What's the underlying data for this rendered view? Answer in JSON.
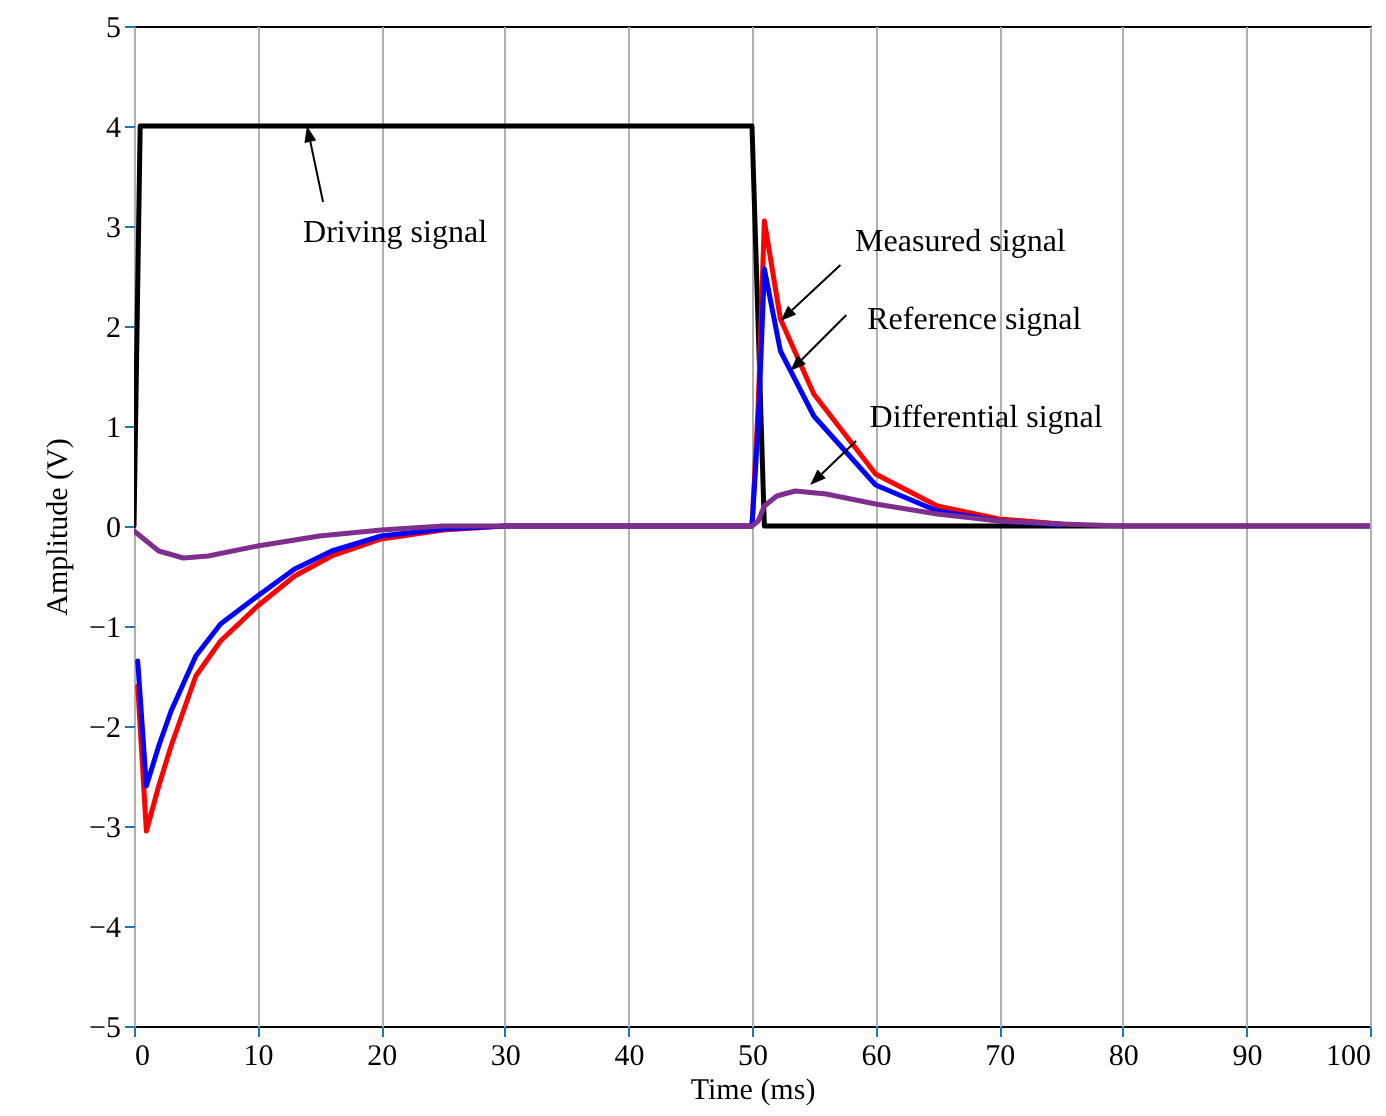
{
  "chart_data": {
    "type": "line",
    "xlabel": "Time (ms)",
    "ylabel": "Amplitude (V)",
    "xlim": [
      0,
      100
    ],
    "xticks": [
      0,
      10,
      20,
      30,
      40,
      50,
      60,
      70,
      80,
      90,
      100
    ],
    "ylim": [
      -5,
      5
    ],
    "yticks": [
      -5,
      -4,
      -3,
      -2,
      -1,
      0,
      1,
      2,
      3,
      4,
      5
    ],
    "grid": "x",
    "line_style": "solid",
    "marker": "none",
    "series": [
      {
        "color": "#000000",
        "x": [
          0,
          0.5,
          50,
          51,
          100
        ],
        "values": [
          0,
          4,
          4,
          0,
          0
        ]
      },
      {
        "color": "#ff0000",
        "x": [
          0.3,
          1,
          2,
          3,
          5,
          7,
          10,
          13,
          16,
          20,
          25,
          30,
          50,
          50.5,
          51,
          52.3,
          55,
          60,
          65,
          70,
          75
        ],
        "values": [
          -1.6,
          -3.05,
          -2.6,
          -2.2,
          -1.5,
          -1.15,
          -0.8,
          -0.5,
          -0.3,
          -0.13,
          -0.04,
          0,
          0,
          1.2,
          3.05,
          2.07,
          1.32,
          0.52,
          0.2,
          0.07,
          0.02
        ]
      },
      {
        "color": "#0000ff",
        "x": [
          0.3,
          1,
          2,
          3,
          5,
          7,
          10,
          13,
          16,
          20,
          25,
          30,
          50,
          50.5,
          51,
          52.3,
          55,
          60,
          65,
          70,
          75
        ],
        "values": [
          -1.35,
          -2.6,
          -2.2,
          -1.85,
          -1.3,
          -0.98,
          -0.7,
          -0.43,
          -0.25,
          -0.1,
          -0.03,
          0,
          0,
          1.0,
          2.57,
          1.75,
          1.1,
          0.41,
          0.15,
          0.05,
          0.01
        ]
      },
      {
        "color": "#7e2f8e",
        "x": [
          0,
          1,
          2,
          4,
          6,
          10,
          15,
          20,
          25,
          50,
          50.5,
          51,
          52,
          53.5,
          56,
          60,
          65,
          70,
          75,
          80,
          100
        ],
        "values": [
          -0.05,
          -0.15,
          -0.25,
          -0.32,
          -0.3,
          -0.2,
          -0.1,
          -0.04,
          0,
          0,
          0.05,
          0.2,
          0.3,
          0.35,
          0.32,
          0.22,
          0.12,
          0.05,
          0.02,
          0,
          0
        ]
      }
    ],
    "annotations": [
      {
        "text": "Driving signal",
        "x": 14,
        "y": 4
      },
      {
        "text": "Measured signal",
        "x": 52.3,
        "y": 2.05
      },
      {
        "text": "Reference signal",
        "x": 53.1,
        "y": 1.55
      },
      {
        "text": "Differential signal",
        "x": 54.7,
        "y": 0.41
      }
    ]
  }
}
